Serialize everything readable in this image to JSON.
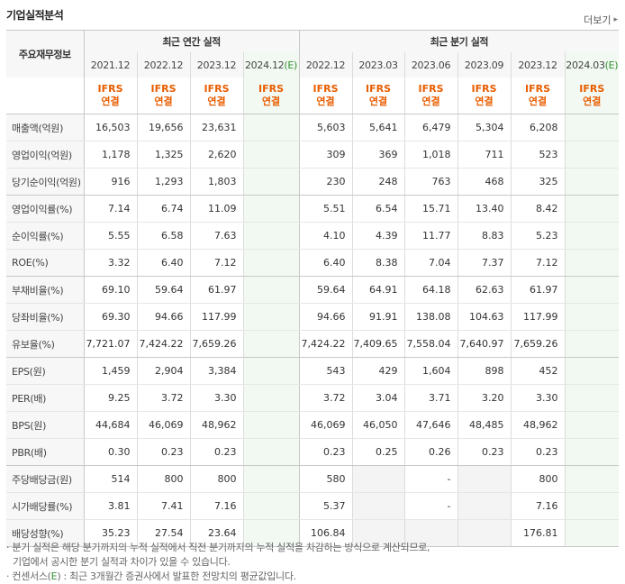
{
  "header": {
    "title": "기업실적분석",
    "more_label": "더보기",
    "more_icon": "chevron-right-icon"
  },
  "table": {
    "corner_label": "주요재무정보",
    "group_annual": "최근 연간 실적",
    "group_quarter": "최근 분기 실적",
    "annual_periods": [
      "2021.12",
      "2022.12",
      "2023.12",
      "2024.12"
    ],
    "quarter_periods": [
      "2022.12",
      "2023.03",
      "2023.06",
      "2023.09",
      "2023.12",
      "2024.03"
    ],
    "estimate_mark": "(E)",
    "ifrs_top": "IFRS",
    "ifrs_bottom": "연결",
    "rows": [
      {
        "label": "매출액(억원)",
        "annual": [
          "16,503",
          "19,656",
          "23,631",
          ""
        ],
        "quarter": [
          "5,603",
          "5,641",
          "6,479",
          "5,304",
          "6,208",
          ""
        ]
      },
      {
        "label": "영업이익(억원)",
        "annual": [
          "1,178",
          "1,325",
          "2,620",
          ""
        ],
        "quarter": [
          "309",
          "369",
          "1,018",
          "711",
          "523",
          ""
        ]
      },
      {
        "label": "당기순이익(억원)",
        "annual": [
          "916",
          "1,293",
          "1,803",
          ""
        ],
        "quarter": [
          "230",
          "248",
          "763",
          "468",
          "325",
          ""
        ]
      },
      {
        "label": "영업이익률(%)",
        "annual": [
          "7.14",
          "6.74",
          "11.09",
          ""
        ],
        "quarter": [
          "5.51",
          "6.54",
          "15.71",
          "13.40",
          "8.42",
          ""
        ]
      },
      {
        "label": "순이익률(%)",
        "annual": [
          "5.55",
          "6.58",
          "7.63",
          ""
        ],
        "quarter": [
          "4.10",
          "4.39",
          "11.77",
          "8.83",
          "5.23",
          ""
        ]
      },
      {
        "label": "ROE(%)",
        "annual": [
          "3.32",
          "6.40",
          "7.12",
          ""
        ],
        "quarter": [
          "6.40",
          "8.38",
          "7.04",
          "7.37",
          "7.12",
          ""
        ]
      },
      {
        "label": "부채비율(%)",
        "annual": [
          "69.10",
          "59.64",
          "61.97",
          ""
        ],
        "quarter": [
          "59.64",
          "64.91",
          "64.18",
          "62.63",
          "61.97",
          ""
        ]
      },
      {
        "label": "당좌비율(%)",
        "annual": [
          "69.30",
          "94.66",
          "117.99",
          ""
        ],
        "quarter": [
          "94.66",
          "91.91",
          "138.08",
          "104.63",
          "117.99",
          ""
        ]
      },
      {
        "label": "유보율(%)",
        "annual": [
          "7,721.07",
          "7,424.22",
          "7,659.26",
          ""
        ],
        "quarter": [
          "7,424.22",
          "7,409.65",
          "7,558.04",
          "7,640.97",
          "7,659.26",
          ""
        ]
      },
      {
        "label": "EPS(원)",
        "annual": [
          "1,459",
          "2,904",
          "3,384",
          ""
        ],
        "quarter": [
          "543",
          "429",
          "1,604",
          "898",
          "452",
          ""
        ]
      },
      {
        "label": "PER(배)",
        "annual": [
          "9.25",
          "3.72",
          "3.30",
          ""
        ],
        "quarter": [
          "3.72",
          "3.04",
          "3.71",
          "3.20",
          "3.30",
          ""
        ]
      },
      {
        "label": "BPS(원)",
        "annual": [
          "44,684",
          "46,069",
          "48,962",
          ""
        ],
        "quarter": [
          "46,069",
          "46,050",
          "47,646",
          "48,485",
          "48,962",
          ""
        ]
      },
      {
        "label": "PBR(배)",
        "annual": [
          "0.30",
          "0.23",
          "0.23",
          ""
        ],
        "quarter": [
          "0.23",
          "0.25",
          "0.26",
          "0.23",
          "0.23",
          ""
        ]
      },
      {
        "label": "주당배당금(원)",
        "annual": [
          "514",
          "800",
          "800",
          ""
        ],
        "quarter": [
          "580",
          "",
          "-",
          "",
          "800",
          ""
        ]
      },
      {
        "label": "시가배당률(%)",
        "annual": [
          "3.81",
          "7.41",
          "7.16",
          ""
        ],
        "quarter": [
          "5.37",
          "",
          "-",
          "",
          "7.16",
          ""
        ]
      },
      {
        "label": "배당성향(%)",
        "annual": [
          "35.23",
          "27.54",
          "23.64",
          ""
        ],
        "quarter": [
          "106.84",
          "",
          "",
          "",
          "176.81",
          ""
        ]
      }
    ]
  },
  "notes": {
    "line1": "· 분기 실적은 해당 분기까지의 누적 실적에서 직전 분기까지의 누적 실적을 차감하는 방식으로 계산되므로,",
    "line2": "기업에서 공시한 분기 실적과 차이가 있을 수 있습니다.",
    "line3_pre": "· 컨센서스(",
    "line3_e": "E",
    "line3_post": ") : 최근 3개월간 증권사에서 발표한 전망치의 평균값입니다."
  },
  "colors": {
    "ifrs": "#e85d00",
    "estimate": "#2f8f2f",
    "estimate_bg": "#f2f9f2",
    "header_bg": "#f7f7f7"
  }
}
